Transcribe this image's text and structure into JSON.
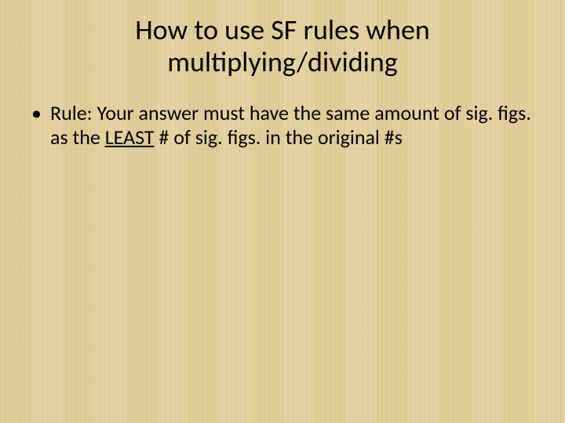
{
  "slide": {
    "background_color": "#e8d7a8",
    "texture": "light-wood-plank",
    "text_color": "#000000",
    "title": {
      "line1": "How to use SF rules when",
      "line2": "multiplying/dividing",
      "font_size_pt": 36,
      "font_weight": 400,
      "align": "center"
    },
    "bullets": [
      {
        "pre": "Rule: Your answer must have the same amount of sig. figs. as the ",
        "emph": "LEAST",
        "post": " # of sig. figs. in the original #s"
      }
    ],
    "body_font_size_pt": 26
  }
}
